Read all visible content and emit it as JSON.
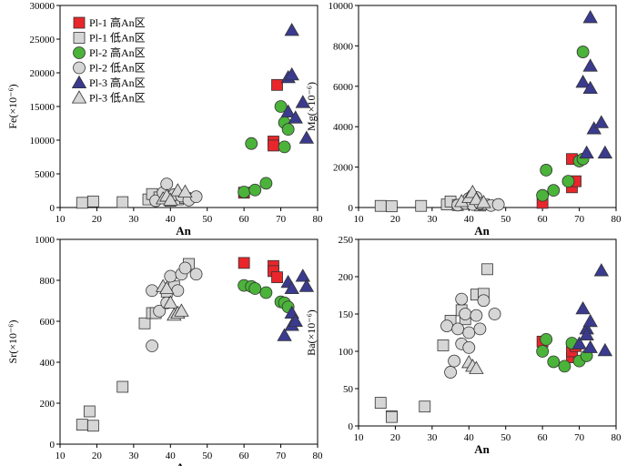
{
  "legend": [
    {
      "name": "Pl-1 高An区",
      "shape": "square",
      "color": "#e8262b"
    },
    {
      "name": "Pl-1 低An区",
      "shape": "square",
      "color": "#d6d6d6"
    },
    {
      "name": "Pl-2 高An区",
      "shape": "circle",
      "color": "#4bb33a"
    },
    {
      "name": "Pl-2 低An区",
      "shape": "circle",
      "color": "#d6d6d6"
    },
    {
      "name": "Pl-3 高An区",
      "shape": "triangle",
      "color": "#3a3b8f"
    },
    {
      "name": "Pl-3 低An区",
      "shape": "triangle",
      "color": "#d6d6d6"
    }
  ],
  "chart_data": [
    {
      "type": "scatter",
      "title": "",
      "xlabel": "An",
      "ylabel": "Fe(×10⁻⁶)",
      "xlim": [
        10,
        80
      ],
      "ylim": [
        0,
        30000
      ],
      "xticks": [
        10,
        20,
        30,
        40,
        50,
        60,
        70,
        80
      ],
      "yticks": [
        0,
        5000,
        10000,
        15000,
        20000,
        25000,
        30000
      ],
      "series": [
        {
          "name": "Pl-1 高An区",
          "points": [
            [
              60,
              2200
            ],
            [
              68,
              9800
            ],
            [
              68,
              9200
            ],
            [
              69,
              18200
            ]
          ]
        },
        {
          "name": "Pl-1 低An区",
          "points": [
            [
              16,
              700
            ],
            [
              19,
              900
            ],
            [
              27,
              800
            ],
            [
              34,
              1200
            ],
            [
              35,
              2000
            ],
            [
              37,
              1500
            ],
            [
              40,
              1000
            ],
            [
              42,
              1200
            ],
            [
              44,
              1400
            ]
          ]
        },
        {
          "name": "Pl-2 高An区",
          "points": [
            [
              60,
              2300
            ],
            [
              62,
              9500
            ],
            [
              63,
              2600
            ],
            [
              66,
              3600
            ],
            [
              70,
              15000
            ],
            [
              71,
              9000
            ],
            [
              71,
              12600
            ],
            [
              72,
              11600
            ]
          ]
        },
        {
          "name": "Pl-2 低An区",
          "points": [
            [
              36,
              1000
            ],
            [
              38,
              2200
            ],
            [
              39,
              3500
            ],
            [
              40,
              1400
            ],
            [
              41,
              1900
            ],
            [
              43,
              1700
            ],
            [
              45,
              1100
            ],
            [
              47,
              1600
            ]
          ]
        },
        {
          "name": "Pl-3 高An区",
          "points": [
            [
              72,
              19300
            ],
            [
              72,
              14200
            ],
            [
              73,
              19700
            ],
            [
              73,
              26300
            ],
            [
              74,
              13300
            ],
            [
              76,
              15600
            ],
            [
              77,
              10300
            ]
          ]
        },
        {
          "name": "Pl-3 低An区",
          "points": [
            [
              38,
              1300
            ],
            [
              39,
              1700
            ],
            [
              40,
              1100
            ],
            [
              42,
              2500
            ],
            [
              44,
              2300
            ]
          ]
        }
      ]
    },
    {
      "type": "scatter",
      "title": "",
      "xlabel": "An",
      "ylabel": "Mg(×10⁻⁶)",
      "xlim": [
        10,
        80
      ],
      "ylim": [
        0,
        10000
      ],
      "xticks": [
        10,
        20,
        30,
        40,
        50,
        60,
        70,
        80
      ],
      "yticks": [
        0,
        2000,
        4000,
        6000,
        8000,
        10000
      ],
      "series": [
        {
          "name": "Pl-1 高An区",
          "points": [
            [
              60,
              230
            ],
            [
              68,
              1000
            ],
            [
              68,
              2400
            ],
            [
              69,
              1300
            ]
          ]
        },
        {
          "name": "Pl-1 低An区",
          "points": [
            [
              16,
              80
            ],
            [
              19,
              60
            ],
            [
              27,
              80
            ],
            [
              34,
              150
            ],
            [
              35,
              300
            ],
            [
              37,
              120
            ],
            [
              40,
              180
            ],
            [
              43,
              100
            ],
            [
              44,
              150
            ]
          ]
        },
        {
          "name": "Pl-2 高An区",
          "points": [
            [
              60,
              600
            ],
            [
              61,
              1850
            ],
            [
              63,
              850
            ],
            [
              67,
              1300
            ],
            [
              70,
              2300
            ],
            [
              71,
              2400
            ],
            [
              71,
              7700
            ]
          ]
        },
        {
          "name": "Pl-2 低An区",
          "points": [
            [
              37,
              120
            ],
            [
              39,
              200
            ],
            [
              40,
              450
            ],
            [
              41,
              150
            ],
            [
              42,
              500
            ],
            [
              43,
              200
            ],
            [
              46,
              100
            ],
            [
              48,
              150
            ]
          ]
        },
        {
          "name": "Pl-3 高An区",
          "points": [
            [
              71,
              6200
            ],
            [
              72,
              2700
            ],
            [
              73,
              5900
            ],
            [
              73,
              7000
            ],
            [
              73,
              9400
            ],
            [
              74,
              3900
            ],
            [
              76,
              4200
            ],
            [
              77,
              2700
            ]
          ]
        },
        {
          "name": "Pl-3 低An区",
          "points": [
            [
              38,
              300
            ],
            [
              40,
              500
            ],
            [
              41,
              750
            ],
            [
              42,
              400
            ],
            [
              44,
              250
            ]
          ]
        }
      ]
    },
    {
      "type": "scatter",
      "title": "",
      "xlabel": "An",
      "ylabel": "Sr(×10⁻⁶)",
      "xlim": [
        10,
        80
      ],
      "ylim": [
        0,
        1000
      ],
      "xticks": [
        10,
        20,
        30,
        40,
        50,
        60,
        70,
        80
      ],
      "yticks": [
        0,
        200,
        400,
        600,
        800,
        1000
      ],
      "series": [
        {
          "name": "Pl-1 高An区",
          "points": [
            [
              60,
              885
            ],
            [
              68,
              870
            ],
            [
              68,
              845
            ],
            [
              69,
              815
            ]
          ]
        },
        {
          "name": "Pl-1 低An区",
          "points": [
            [
              16,
              95
            ],
            [
              18,
              160
            ],
            [
              19,
              90
            ],
            [
              27,
              280
            ],
            [
              33,
              590
            ],
            [
              35,
              640
            ],
            [
              36,
              640
            ],
            [
              39,
              745
            ],
            [
              41,
              770
            ],
            [
              45,
              880
            ]
          ]
        },
        {
          "name": "Pl-2 高An区",
          "points": [
            [
              60,
              775
            ],
            [
              62,
              770
            ],
            [
              63,
              760
            ],
            [
              66,
              740
            ],
            [
              70,
              695
            ],
            [
              71,
              690
            ],
            [
              72,
              670
            ]
          ]
        },
        {
          "name": "Pl-2 低An区",
          "points": [
            [
              35,
              480
            ],
            [
              35,
              750
            ],
            [
              37,
              650
            ],
            [
              39,
              690
            ],
            [
              40,
              820
            ],
            [
              42,
              750
            ],
            [
              43,
              830
            ],
            [
              44,
              860
            ],
            [
              47,
              830
            ]
          ]
        },
        {
          "name": "Pl-3 高An区",
          "points": [
            [
              71,
              530
            ],
            [
              72,
              790
            ],
            [
              73,
              640
            ],
            [
              73,
              580
            ],
            [
              73,
              760
            ],
            [
              74,
              600
            ],
            [
              76,
              820
            ],
            [
              77,
              770
            ]
          ]
        },
        {
          "name": "Pl-3 低An区",
          "points": [
            [
              38,
              770
            ],
            [
              39,
              760
            ],
            [
              40,
              690
            ],
            [
              41,
              630
            ],
            [
              42,
              640
            ],
            [
              43,
              650
            ]
          ]
        }
      ]
    },
    {
      "type": "scatter",
      "title": "",
      "xlabel": "An",
      "ylabel": "Ba(×10⁻⁶)",
      "xlim": [
        10,
        80
      ],
      "ylim": [
        0,
        250
      ],
      "xticks": [
        10,
        20,
        30,
        40,
        50,
        60,
        70,
        80
      ],
      "yticks": [
        0,
        50,
        100,
        150,
        200,
        250
      ],
      "series": [
        {
          "name": "Pl-1 高An区",
          "points": [
            [
              60,
              113
            ],
            [
              68,
              92
            ],
            [
              68,
              100
            ],
            [
              69,
              107
            ]
          ]
        },
        {
          "name": "Pl-1 低An区",
          "points": [
            [
              16,
              31
            ],
            [
              19,
              13
            ],
            [
              19,
              12
            ],
            [
              28,
              26
            ],
            [
              33,
              108
            ],
            [
              35,
              141
            ],
            [
              38,
              155
            ],
            [
              39,
              143
            ],
            [
              42,
              176
            ],
            [
              44,
              177
            ],
            [
              45,
              210
            ]
          ]
        },
        {
          "name": "Pl-2 高An区",
          "points": [
            [
              60,
              100
            ],
            [
              61,
              116
            ],
            [
              63,
              86
            ],
            [
              66,
              80
            ],
            [
              68,
              111
            ],
            [
              70,
              87
            ],
            [
              72,
              94
            ]
          ]
        },
        {
          "name": "Pl-2 低An区",
          "points": [
            [
              34,
              134
            ],
            [
              35,
              72
            ],
            [
              36,
              87
            ],
            [
              37,
              130
            ],
            [
              38,
              110
            ],
            [
              38,
              170
            ],
            [
              39,
              150
            ],
            [
              40,
              125
            ],
            [
              40,
              105
            ],
            [
              42,
              148
            ],
            [
              43,
              130
            ],
            [
              44,
              168
            ],
            [
              47,
              150
            ]
          ]
        },
        {
          "name": "Pl-3 高An区",
          "points": [
            [
              70,
              110
            ],
            [
              71,
              157
            ],
            [
              72,
              130
            ],
            [
              72,
              122
            ],
            [
              73,
              140
            ],
            [
              73,
              105
            ],
            [
              76,
              208
            ],
            [
              77,
              101
            ]
          ]
        },
        {
          "name": "Pl-3 低An区",
          "points": [
            [
              40,
              85
            ],
            [
              41,
              80
            ],
            [
              42,
              77
            ]
          ]
        }
      ]
    }
  ]
}
